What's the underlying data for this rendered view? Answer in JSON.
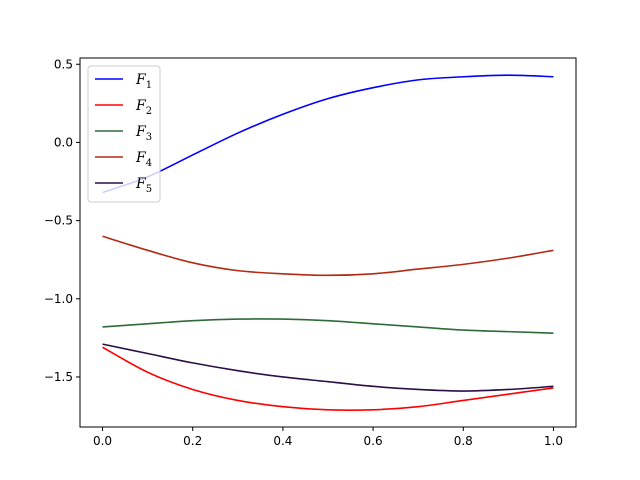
{
  "chart_data": {
    "type": "line",
    "title": "",
    "xlabel": "",
    "ylabel": "",
    "xlim": [
      -0.05,
      1.05
    ],
    "ylim": [
      -1.82,
      0.54
    ],
    "xticks": [
      0.0,
      0.2,
      0.4,
      0.6,
      0.8,
      1.0
    ],
    "xtick_labels": [
      "0.0",
      "0.2",
      "0.4",
      "0.6",
      "0.8",
      "1.0"
    ],
    "yticks": [
      0.5,
      0.0,
      -0.5,
      -1.0,
      -1.5
    ],
    "ytick_labels": [
      "0.5",
      "0.0",
      "−0.5",
      "−1.0",
      "−1.5"
    ],
    "grid": false,
    "legend_position": "top-left",
    "series": [
      {
        "name": "F1",
        "label_base": "F",
        "label_sub": "1",
        "color": "#0000ff",
        "x": [
          0.0,
          0.1,
          0.2,
          0.3,
          0.4,
          0.5,
          0.6,
          0.7,
          0.8,
          0.9,
          1.0
        ],
        "y": [
          -0.32,
          -0.22,
          -0.08,
          0.06,
          0.18,
          0.28,
          0.35,
          0.4,
          0.42,
          0.43,
          0.42
        ]
      },
      {
        "name": "F2",
        "label_base": "F",
        "label_sub": "2",
        "color": "#ff0000",
        "x": [
          0.0,
          0.1,
          0.2,
          0.3,
          0.4,
          0.5,
          0.6,
          0.7,
          0.8,
          0.9,
          1.0
        ],
        "y": [
          -1.31,
          -1.47,
          -1.58,
          -1.65,
          -1.69,
          -1.71,
          -1.71,
          -1.69,
          -1.65,
          -1.61,
          -1.57
        ]
      },
      {
        "name": "F3",
        "label_base": "F",
        "label_sub": "3",
        "color": "#2e6b38",
        "x": [
          0.0,
          0.1,
          0.2,
          0.3,
          0.4,
          0.5,
          0.6,
          0.7,
          0.8,
          0.9,
          1.0
        ],
        "y": [
          -1.18,
          -1.16,
          -1.14,
          -1.13,
          -1.13,
          -1.14,
          -1.16,
          -1.18,
          -1.2,
          -1.21,
          -1.22
        ]
      },
      {
        "name": "F4",
        "label_base": "F",
        "label_sub": "4",
        "color": "#b22a14",
        "x": [
          0.0,
          0.1,
          0.2,
          0.3,
          0.4,
          0.5,
          0.6,
          0.7,
          0.8,
          0.9,
          1.0
        ],
        "y": [
          -0.6,
          -0.69,
          -0.77,
          -0.82,
          -0.84,
          -0.85,
          -0.84,
          -0.81,
          -0.78,
          -0.74,
          -0.69
        ]
      },
      {
        "name": "F5",
        "label_base": "F",
        "label_sub": "5",
        "color": "#2b0f45",
        "x": [
          0.0,
          0.1,
          0.2,
          0.3,
          0.4,
          0.5,
          0.6,
          0.7,
          0.8,
          0.9,
          1.0
        ],
        "y": [
          -1.29,
          -1.35,
          -1.41,
          -1.46,
          -1.5,
          -1.53,
          -1.56,
          -1.58,
          -1.59,
          -1.58,
          -1.56
        ]
      }
    ]
  }
}
